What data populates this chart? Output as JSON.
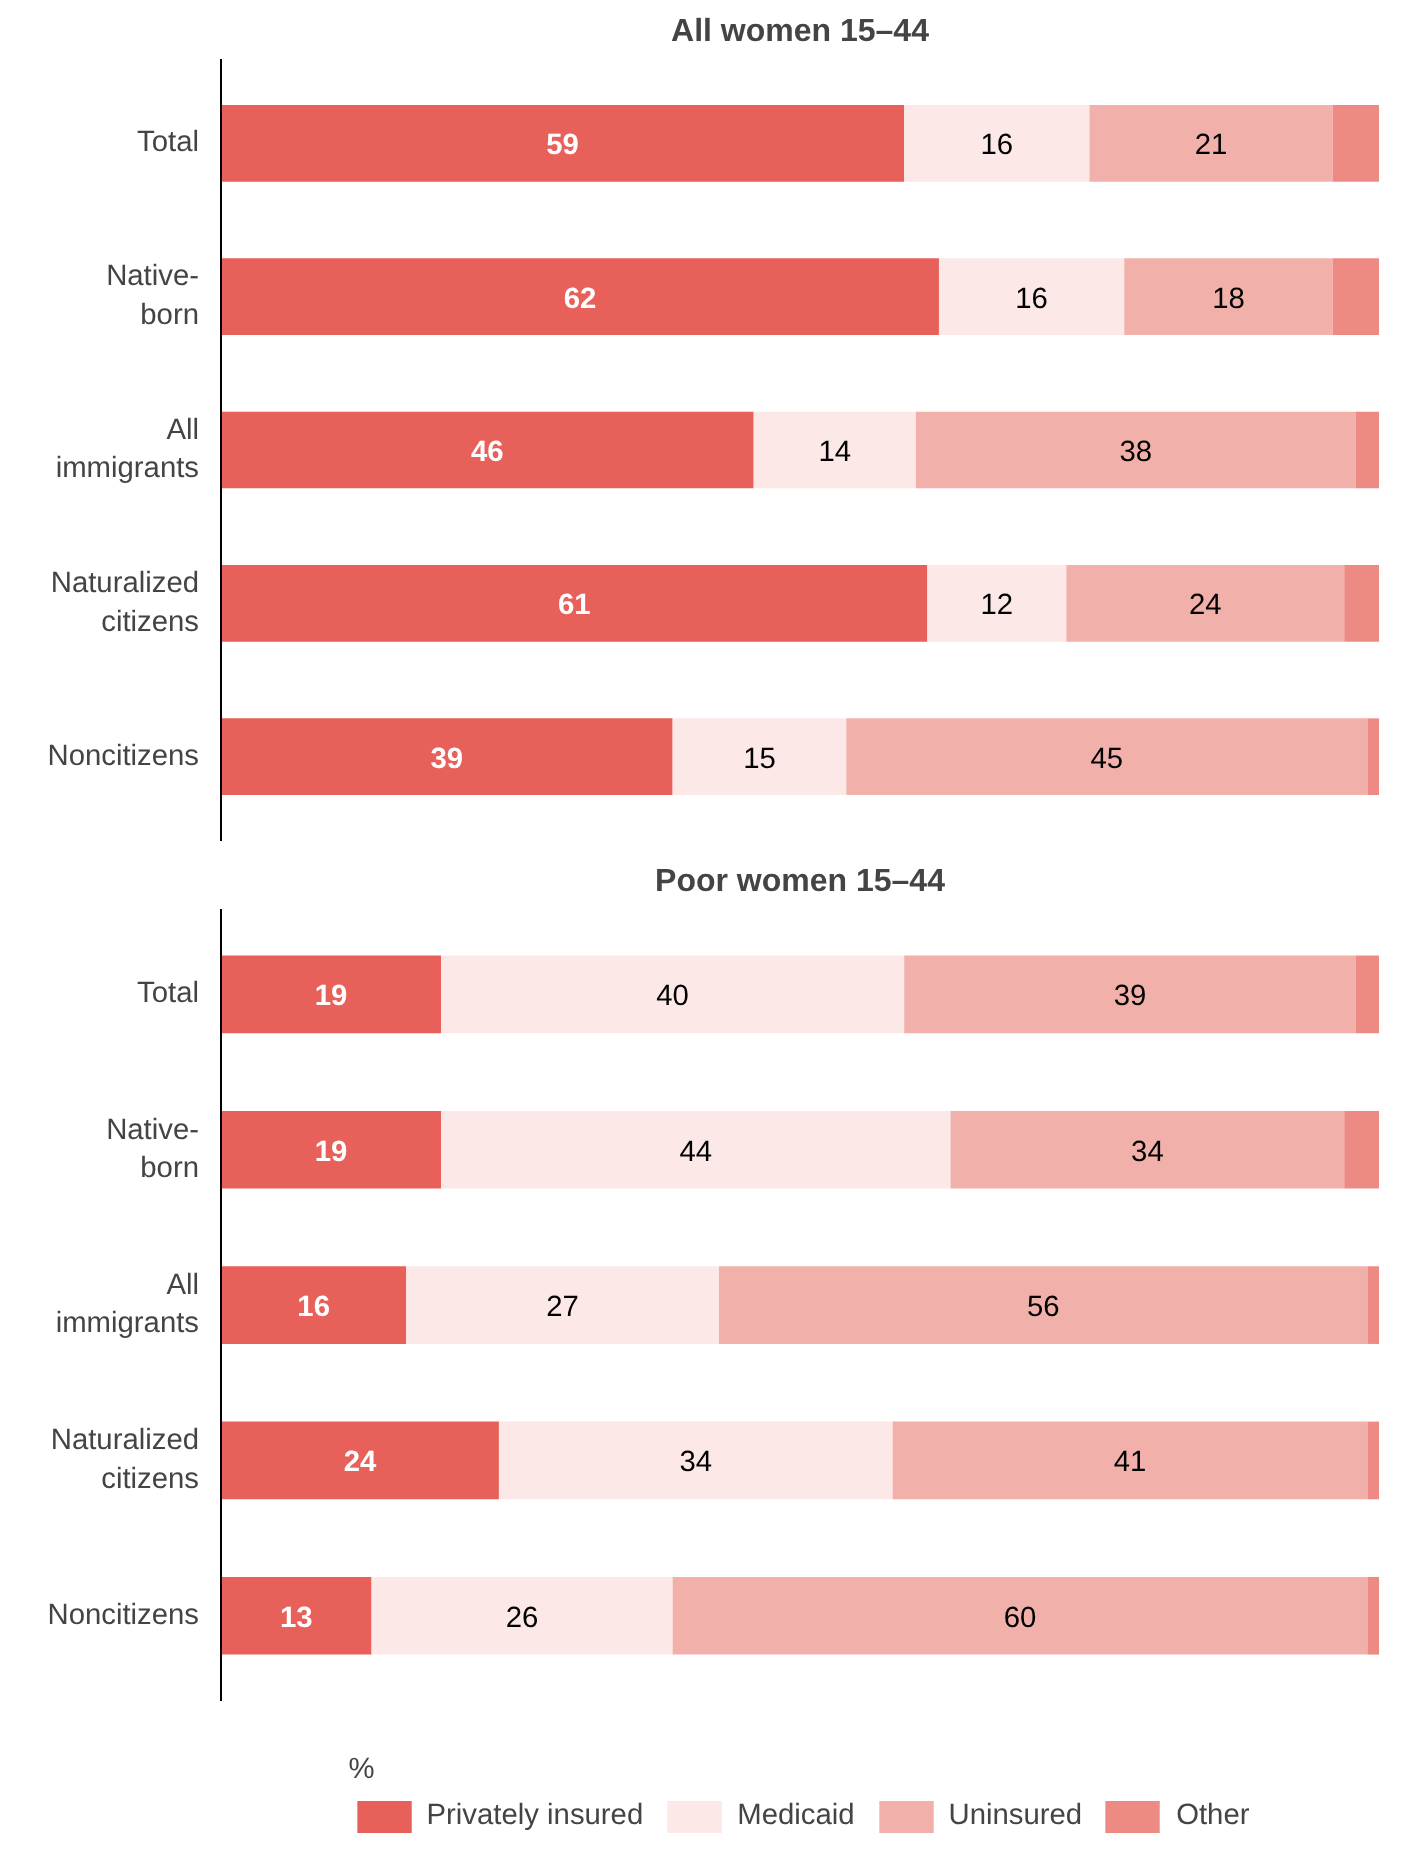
{
  "chart_data": [
    {
      "type": "bar",
      "orientation": "horizontal",
      "stacked": true,
      "title": "All women 15–44",
      "categories": [
        "Total",
        "Native-\nborn",
        "All\nimmigrants",
        "Naturalized\ncitizens",
        "Noncitizens"
      ],
      "xlim": [
        0,
        100
      ],
      "tick_labels": "y",
      "grid": false,
      "legend": false,
      "series": [
        {
          "color": "#e8605a",
          "values": [
            59,
            62,
            46,
            61,
            39
          ],
          "value_labels": [
            "59",
            "62",
            "46",
            "61",
            "39"
          ]
        },
        {
          "color": "#fde8e8",
          "values": [
            16,
            16,
            14,
            12,
            15
          ],
          "value_labels": [
            "16",
            "16",
            "14",
            "12",
            "15"
          ]
        },
        {
          "color": "#f2b0aa",
          "values": [
            21,
            18,
            38,
            24,
            45
          ],
          "value_labels": [
            "21",
            "18",
            "38",
            "24",
            "45"
          ]
        },
        {
          "color": "#ed8a84",
          "values": [
            4,
            4,
            2,
            3,
            1
          ],
          "value_labels": [
            null,
            null,
            null,
            null,
            null
          ]
        }
      ]
    },
    {
      "type": "bar",
      "orientation": "horizontal",
      "stacked": true,
      "title": "Poor women 15–44",
      "categories": [
        "Total",
        "Native-\nborn",
        "All\nimmigrants",
        "Naturalized\ncitizens",
        "Noncitizens"
      ],
      "xlim": [
        0,
        100
      ],
      "tick_labels": "y",
      "grid": false,
      "legend": "bottom",
      "legend_title": "%",
      "series": [
        {
          "name": "Privately insured",
          "color": "#e8605a",
          "values": [
            19,
            19,
            16,
            24,
            13
          ],
          "value_labels": [
            "19",
            "19",
            "16",
            "24",
            "13"
          ]
        },
        {
          "name": "Medicaid",
          "color": "#fde8e8",
          "values": [
            40,
            44,
            27,
            34,
            26
          ],
          "value_labels": [
            "40",
            "44",
            "27",
            "34",
            "26"
          ]
        },
        {
          "name": "Uninsured",
          "color": "#f2b0aa",
          "values": [
            39,
            34,
            56,
            41,
            60
          ],
          "value_labels": [
            "39",
            "34",
            "56",
            "41",
            "60"
          ]
        },
        {
          "name": "Other",
          "color": "#ed8a84",
          "values": [
            2,
            3,
            1,
            1,
            1
          ],
          "value_labels": [
            null,
            null,
            null,
            null,
            null
          ]
        }
      ]
    }
  ]
}
